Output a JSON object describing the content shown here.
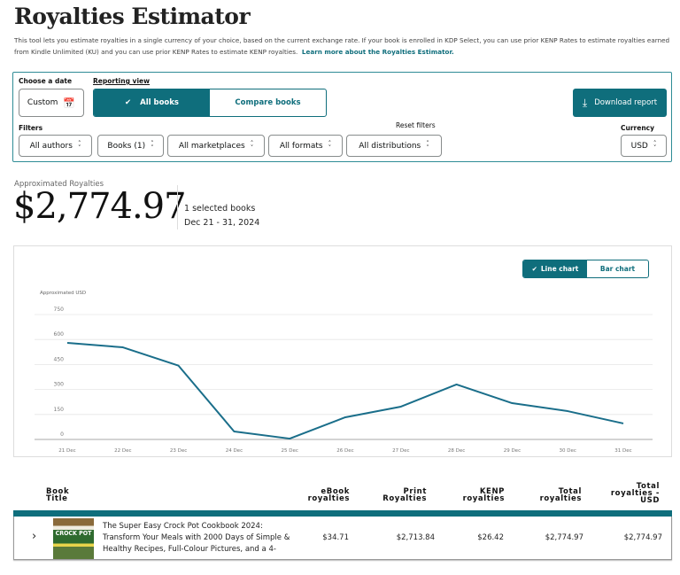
{
  "header": {
    "title": "Royalties Estimator",
    "intro": "This tool lets you estimate royalties in a single currency of your choice, based on the current exchange rate. If your book is enrolled in KDP Select, you can use prior KENP Rates to estimate royalties earned from Kindle Unlimited (KU) and you can use prior KENP Rates to estimate KENP royalties.",
    "learn_more": "Learn more about the Royalties Estimator."
  },
  "controls": {
    "date_label": "Choose a date",
    "date_value": "Custom",
    "reporting_label": "Reporting view",
    "view_all": "All books",
    "view_compare": "Compare books",
    "download": "Download report",
    "filters_label": "Filters",
    "reset_filters": "Reset filters",
    "currency_label": "Currency",
    "currency_value": "USD",
    "filters": [
      "All authors",
      "Books (1)",
      "All marketplaces",
      "All formats",
      "All distributions"
    ]
  },
  "summary": {
    "label": "Approximated Royalties",
    "amount": "$2,774.97",
    "selected": "1 selected books",
    "range": "Dec 21 - 31, 2024"
  },
  "chart_toggle": {
    "line": "Line chart",
    "bar": "Bar chart"
  },
  "chart_data": {
    "type": "line",
    "ylabel": "Approximated USD",
    "xlabel": "",
    "categories": [
      "21 Dec",
      "22 Dec",
      "23 Dec",
      "24 Dec",
      "25 Dec",
      "26 Dec",
      "27 Dec",
      "28 Dec",
      "29 Dec",
      "30 Dec",
      "31 Dec"
    ],
    "series": [
      {
        "name": "Approximated Royalties",
        "values": [
          580,
          553,
          443,
          48,
          5,
          133,
          197,
          330,
          218,
          170,
          96
        ],
        "color": "#1a6e8a"
      }
    ],
    "ylim": [
      0,
      750
    ],
    "yticks": [
      0,
      150,
      300,
      450,
      600,
      750
    ],
    "grid": true
  },
  "table": {
    "headers": {
      "title": [
        "Book",
        "Title"
      ],
      "ebook": [
        "eBook",
        "royalties"
      ],
      "print": [
        "Print",
        "Royalties"
      ],
      "kenp": [
        "KENP",
        "royalties"
      ],
      "total": [
        "Total",
        "royalties"
      ],
      "total_usd": [
        "Total",
        "royalties -",
        "USD"
      ]
    },
    "rows": [
      {
        "cover_text": "CROCK POT",
        "title": "The Super Easy Crock Pot Cookbook 2024: Transform Your Meals with 2000 Days of Simple & Healthy Recipes, Full-Colour Pictures, and a 4-",
        "ebook": "$34.71",
        "print": "$2,713.84",
        "kenp": "$26.42",
        "total": "$2,774.97",
        "total_usd": "$2,774.97"
      }
    ]
  },
  "colors": {
    "accent": "#0f6e7c",
    "line": "#1a6e8a"
  }
}
